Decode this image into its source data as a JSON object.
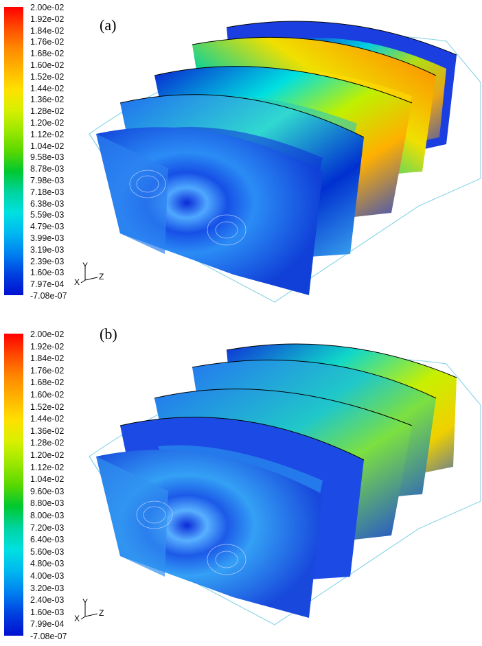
{
  "panels": [
    {
      "label": "(a)",
      "colorbar_ticks": [
        "2.00e-02",
        "1.92e-02",
        "1.84e-02",
        "1.76e-02",
        "1.68e-02",
        "1.60e-02",
        "1.52e-02",
        "1.44e-02",
        "1.36e-02",
        "1.28e-02",
        "1.20e-02",
        "1.12e-02",
        "1.04e-02",
        "9.58e-03",
        "8.78e-03",
        "7.98e-03",
        "7.18e-03",
        "6.38e-03",
        "5.59e-03",
        "4.79e-03",
        "3.99e-03",
        "3.19e-03",
        "2.39e-03",
        "1.60e-03",
        "7.97e-04",
        "-7.08e-07"
      ],
      "axes": {
        "x": "X",
        "y": "Y",
        "z": "Z"
      }
    },
    {
      "label": "(b)",
      "colorbar_ticks": [
        "2.00e-02",
        "1.92e-02",
        "1.84e-02",
        "1.76e-02",
        "1.68e-02",
        "1.60e-02",
        "1.52e-02",
        "1.44e-02",
        "1.36e-02",
        "1.28e-02",
        "1.20e-02",
        "1.12e-02",
        "1.04e-02",
        "9.60e-03",
        "8.80e-03",
        "8.00e-03",
        "7.20e-03",
        "6.40e-03",
        "5.60e-03",
        "4.80e-03",
        "4.00e-03",
        "3.20e-03",
        "2.40e-03",
        "1.60e-03",
        "7.99e-04",
        "-7.08e-07"
      ],
      "axes": {
        "x": "X",
        "y": "Y",
        "z": "Z"
      }
    }
  ],
  "colormap": [
    "#ff0000",
    "#ff4a00",
    "#ff8800",
    "#ffb400",
    "#ffe000",
    "#d8f000",
    "#9ce800",
    "#5ad800",
    "#00c830",
    "#00d4a0",
    "#00e0e0",
    "#00b8f0",
    "#0080f0",
    "#0040e0",
    "#0010d0"
  ]
}
